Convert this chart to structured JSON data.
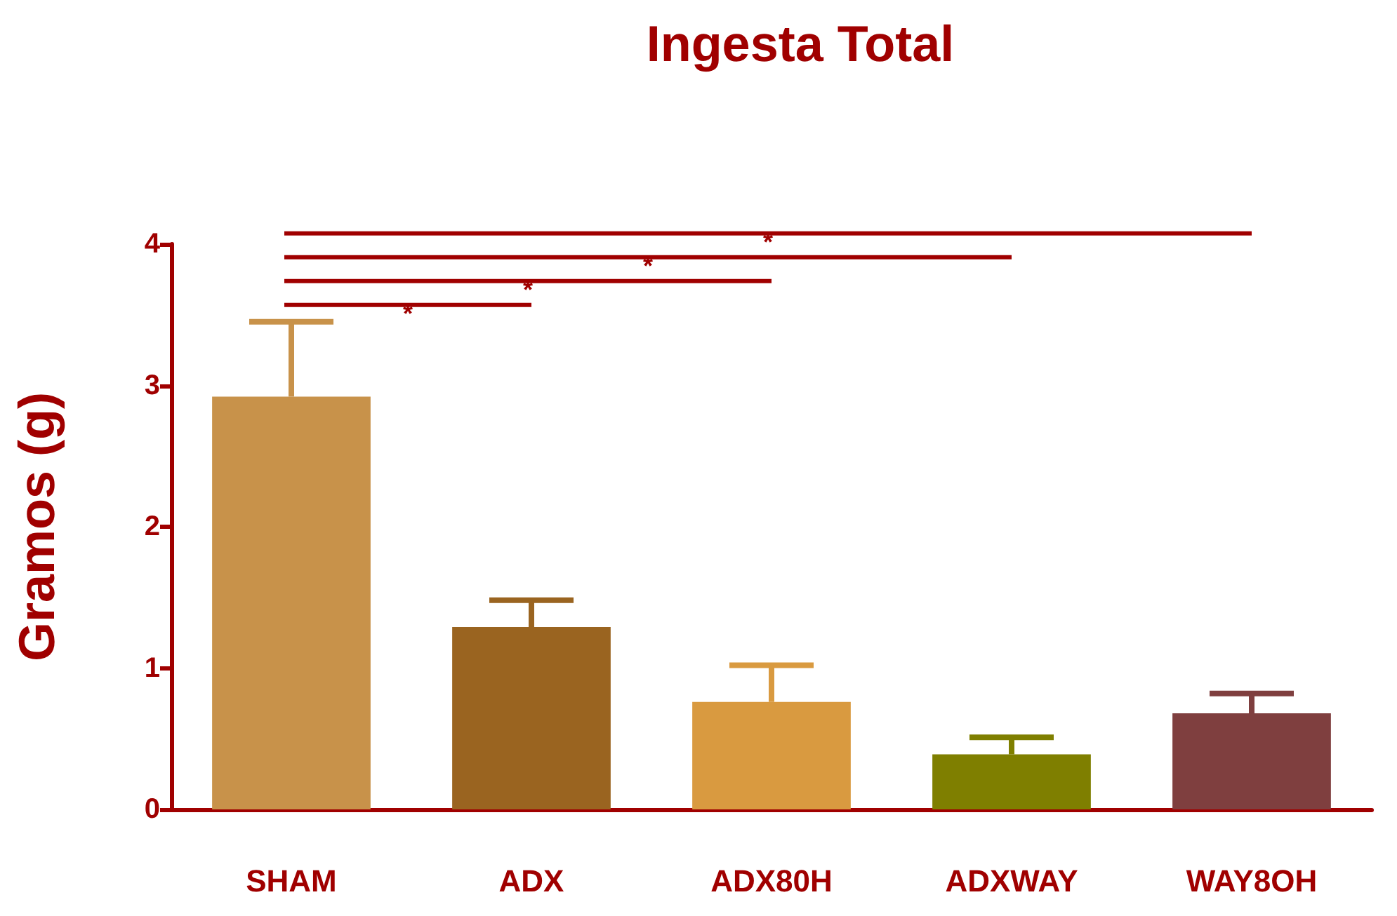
{
  "chart_data": {
    "type": "bar",
    "title": "Ingesta Total",
    "ylabel": "Gramos (g)",
    "categories": [
      "SHAM",
      "ADX",
      "ADX80H",
      "ADXWAY",
      "WAY8OH"
    ],
    "values": [
      2.92,
      1.29,
      0.76,
      0.39,
      0.68
    ],
    "colors": [
      "#c8924a",
      "#9a6420",
      "#d99a40",
      "#7f7f00",
      "#7f3f3f"
    ],
    "errors": [
      [
        2.92,
        3.45
      ],
      [
        1.29,
        1.48
      ],
      [
        0.76,
        1.02
      ],
      [
        0.39,
        0.51
      ],
      [
        0.68,
        0.82
      ]
    ],
    "ylim": [
      0,
      4
    ],
    "yticks": [
      0,
      1,
      2,
      3,
      4
    ],
    "grid": false,
    "annotations": [
      "*",
      "*",
      "*",
      "*"
    ]
  }
}
